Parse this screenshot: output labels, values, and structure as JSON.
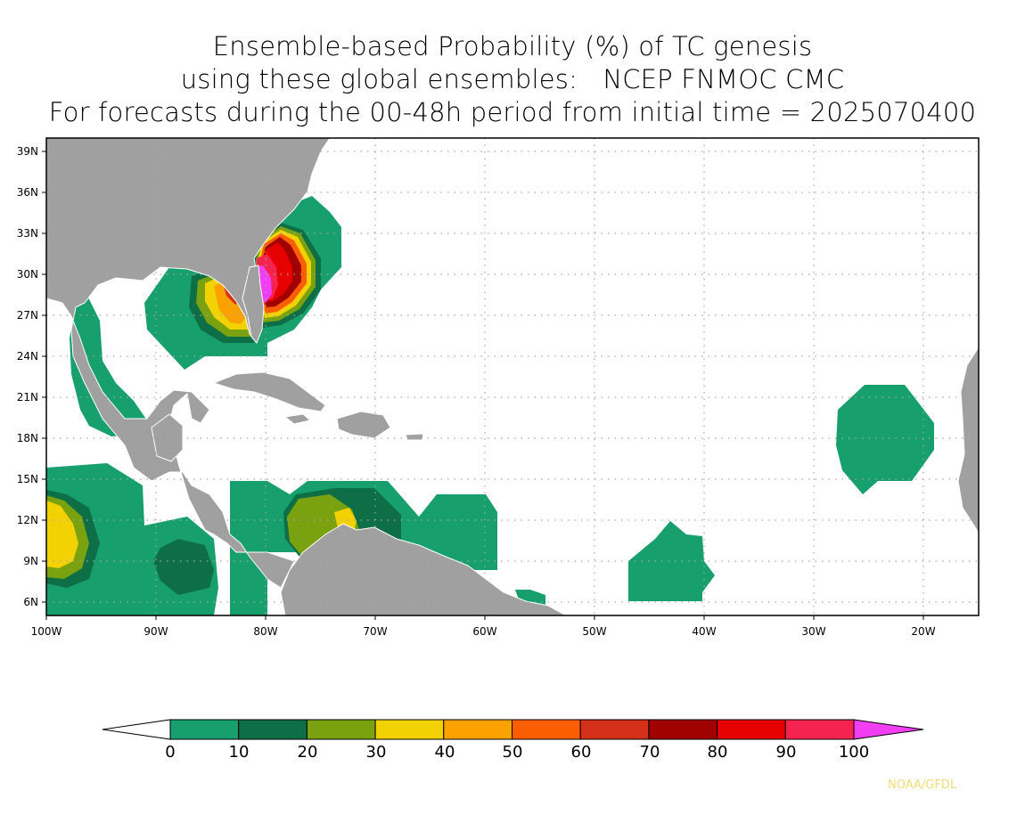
{
  "title": {
    "line1": "Ensemble-based Probability (%) of TC genesis",
    "line2": "using these global ensembles:   NCEP FNMOC CMC",
    "line3": "For forecasts during the 00-48h period from initial time = 2025070400"
  },
  "map": {
    "lat_labels": [
      "39N",
      "36N",
      "33N",
      "30N",
      "27N",
      "24N",
      "21N",
      "18N",
      "15N",
      "12N",
      "9N",
      "6N"
    ],
    "lon_labels": [
      "100W",
      "90W",
      "80W",
      "70W",
      "60W",
      "50W",
      "40W",
      "30W",
      "20W"
    ],
    "land_color": "#a0a0a0",
    "ocean_color": "#ffffff"
  },
  "colorbar": {
    "ticks": [
      "0",
      "10",
      "20",
      "30",
      "40",
      "50",
      "60",
      "70",
      "80",
      "90",
      "100"
    ],
    "colors": [
      "#17a06e",
      "#0e6e46",
      "#7aa10f",
      "#f2d203",
      "#fba100",
      "#fb5e00",
      "#d5311a",
      "#a10000",
      "#e60000",
      "#f52350",
      "#f23ef2"
    ]
  },
  "credit": "NOAA/GFDL"
}
